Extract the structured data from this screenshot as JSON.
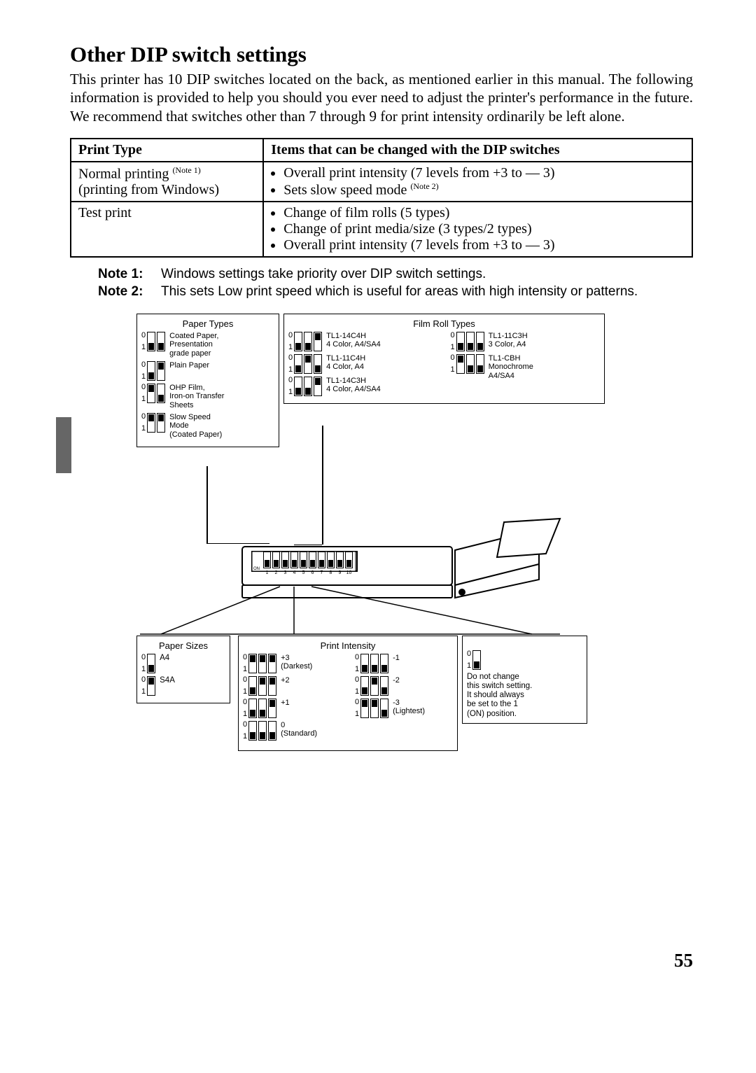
{
  "title": "Other DIP switch settings",
  "intro": "This printer has 10 DIP switches located on the back, as mentioned earlier in this manual. The following information is provided to help you should you ever need to adjust the printer's performance in the future.  We recommend that switches other than 7 through 9 for print intensity ordinarily be left alone.",
  "table": {
    "h1": "Print Type",
    "h2": "Items that can be changed with the DIP switches",
    "r1c1a": "Normal printing ",
    "r1c1_sup": "(Note 1)",
    "r1c1b": "(printing from Windows)",
    "r1c2a": "Overall print intensity (7 levels from +3 to — 3)",
    "r1c2b": "Sets slow speed mode ",
    "r1c2b_sup": "(Note 2)",
    "r2c1": "Test print",
    "r2c2a": "Change of film rolls (5 types)",
    "r2c2b": "Change of print media/size (3 types/2 types)",
    "r2c2c": "Overall print intensity (7 levels from +3 to — 3)"
  },
  "notes": {
    "n1l": "Note 1:",
    "n1t": "Windows settings take priority over DIP switch settings.",
    "n2l": "Note 2:",
    "n2t": "This sets Low print speed which is useful for areas with high intensity or patterns."
  },
  "boxes": {
    "paperTypes": {
      "title": "Paper Types",
      "rows": [
        {
          "sw": [
            "dn",
            "dn"
          ],
          "label": "Coated Paper,\nPresentation\ngrade paper"
        },
        {
          "sw": [
            "dn",
            "up"
          ],
          "label": "Plain Paper"
        },
        {
          "sw": [
            "up",
            "dn"
          ],
          "label": "OHP Film,\nIron-on Transfer\nSheets"
        },
        {
          "sw": [
            "up",
            "up"
          ],
          "label": "Slow Speed\nMode\n(Coated Paper)"
        }
      ]
    },
    "filmRoll": {
      "title": "Film Roll Types",
      "left": [
        {
          "sw": [
            "dn",
            "dn",
            "up"
          ],
          "label": "TL1-14C4H\n4 Color, A4/SA4"
        },
        {
          "sw": [
            "dn",
            "up",
            "dn"
          ],
          "label": "TL1-11C4H\n4 Color, A4"
        },
        {
          "sw": [
            "dn",
            "dn",
            "up"
          ],
          "label": "TL1-14C3H\n4 Color, A4/SA4"
        }
      ],
      "right": [
        {
          "sw": [
            "dn",
            "dn",
            "dn"
          ],
          "label": "TL1-11C3H\n3 Color, A4"
        },
        {
          "sw": [
            "up",
            "dn",
            "dn"
          ],
          "label": "TL1-CBH\nMonochrome\nA4/SA4"
        }
      ]
    },
    "paperSizes": {
      "title": "Paper Sizes",
      "rows": [
        {
          "sw": [
            "dn"
          ],
          "label": "A4"
        },
        {
          "sw": [
            "up"
          ],
          "label": "S4A"
        }
      ]
    },
    "printIntensity": {
      "title": "Print Intensity",
      "colA": [
        {
          "sw": [
            "up",
            "up",
            "up"
          ],
          "label": "+3\n(Darkest)"
        },
        {
          "sw": [
            "dn",
            "up",
            "up"
          ],
          "label": "+2"
        },
        {
          "sw": [
            "dn",
            "dn",
            "up"
          ],
          "label": "+1"
        },
        {
          "sw": [
            "dn",
            "dn",
            "dn"
          ],
          "label": "0\n(Standard)"
        }
      ],
      "colB": [
        {
          "sw": [
            "dn",
            "dn",
            "dn"
          ],
          "label": "-1"
        },
        {
          "sw": [
            "dn",
            "up",
            "dn"
          ],
          "label": "-2"
        },
        {
          "sw": [
            "up",
            "up",
            "dn"
          ],
          "label": "-3\n(Lightest)"
        }
      ]
    },
    "fixed": {
      "sw": [
        "dn"
      ],
      "text": "Do not change\nthis switch setting.\nIt should always\nbe set to the 1\n(ON) position."
    }
  },
  "page": "55"
}
